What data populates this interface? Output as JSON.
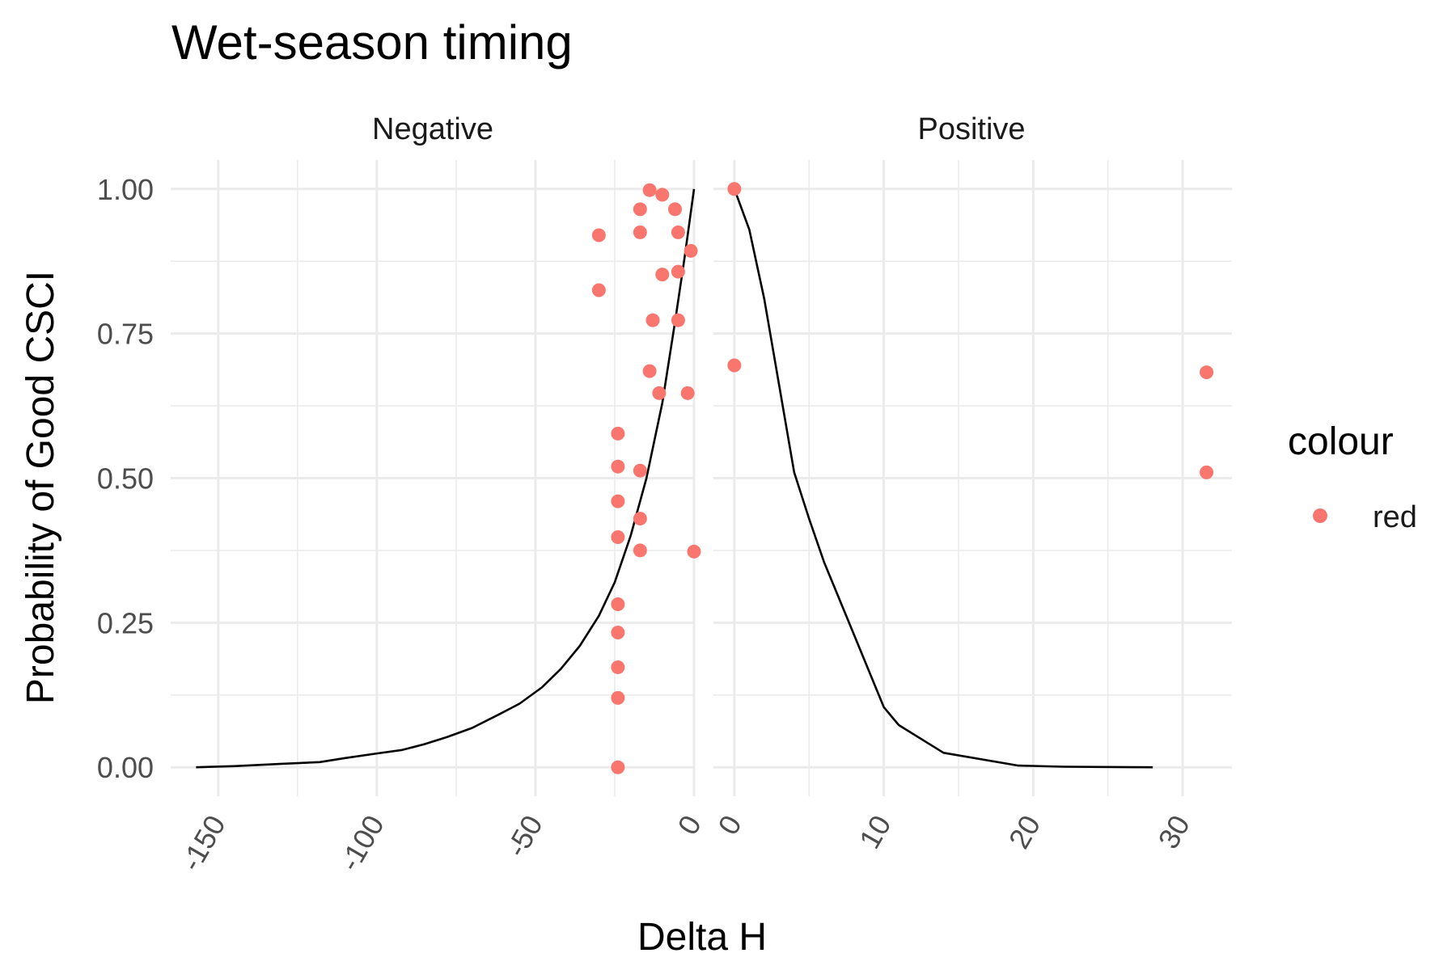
{
  "chart_data": {
    "type": "scatter",
    "title": "Wet-season timing",
    "xlabel": "Delta H",
    "ylabel": "Probability of Good CSCI",
    "legend": {
      "title": "colour",
      "position": "right",
      "entries": [
        {
          "label": "red",
          "color": "#F8766D"
        }
      ]
    },
    "y_ticks": [
      "0.00",
      "0.25",
      "0.50",
      "0.75",
      "1.00"
    ],
    "ylim": [
      -0.05,
      1.05
    ],
    "point_color": "#F8766D",
    "line_color": "#000000",
    "grid": true,
    "panels": [
      {
        "strip": "Negative",
        "xlim": [
          -165,
          0
        ],
        "x_ticks": [
          -150,
          -100,
          -50,
          0
        ],
        "points": [
          {
            "x": -30,
            "y": 0.92
          },
          {
            "x": -30,
            "y": 0.825
          },
          {
            "x": -17,
            "y": 0.965
          },
          {
            "x": -17,
            "y": 0.925
          },
          {
            "x": -14,
            "y": 0.998
          },
          {
            "x": -10,
            "y": 0.99
          },
          {
            "x": -6,
            "y": 0.965
          },
          {
            "x": -5,
            "y": 0.925
          },
          {
            "x": -1,
            "y": 0.893
          },
          {
            "x": -5,
            "y": 0.857
          },
          {
            "x": -10,
            "y": 0.852
          },
          {
            "x": -13,
            "y": 0.773
          },
          {
            "x": -5,
            "y": 0.773
          },
          {
            "x": -14,
            "y": 0.685
          },
          {
            "x": -11,
            "y": 0.647
          },
          {
            "x": -2,
            "y": 0.647
          },
          {
            "x": -24,
            "y": 0.577
          },
          {
            "x": -24,
            "y": 0.52
          },
          {
            "x": -17,
            "y": 0.513
          },
          {
            "x": -24,
            "y": 0.46
          },
          {
            "x": -17,
            "y": 0.43
          },
          {
            "x": -24,
            "y": 0.398
          },
          {
            "x": -17,
            "y": 0.375
          },
          {
            "x": 0,
            "y": 0.373
          },
          {
            "x": -24,
            "y": 0.282
          },
          {
            "x": -24,
            "y": 0.233
          },
          {
            "x": -24,
            "y": 0.173
          },
          {
            "x": -24,
            "y": 0.12
          },
          {
            "x": -24,
            "y": 0.0
          }
        ],
        "curve": [
          {
            "x": -157,
            "y": 0.0
          },
          {
            "x": -145,
            "y": 0.002
          },
          {
            "x": -130,
            "y": 0.006
          },
          {
            "x": -118,
            "y": 0.009
          },
          {
            "x": -110,
            "y": 0.016
          },
          {
            "x": -100,
            "y": 0.024
          },
          {
            "x": -92,
            "y": 0.03
          },
          {
            "x": -85,
            "y": 0.04
          },
          {
            "x": -78,
            "y": 0.052
          },
          {
            "x": -70,
            "y": 0.068
          },
          {
            "x": -62,
            "y": 0.09
          },
          {
            "x": -55,
            "y": 0.11
          },
          {
            "x": -48,
            "y": 0.138
          },
          {
            "x": -42,
            "y": 0.17
          },
          {
            "x": -36,
            "y": 0.21
          },
          {
            "x": -30,
            "y": 0.262
          },
          {
            "x": -25,
            "y": 0.32
          },
          {
            "x": -20,
            "y": 0.4
          },
          {
            "x": -15,
            "y": 0.5
          },
          {
            "x": -10,
            "y": 0.63
          },
          {
            "x": -6,
            "y": 0.77
          },
          {
            "x": -3,
            "y": 0.88
          },
          {
            "x": 0,
            "y": 1.0
          }
        ]
      },
      {
        "strip": "Positive",
        "xlim": [
          -1.4,
          33.3
        ],
        "x_ticks": [
          0,
          10,
          20,
          30
        ],
        "points": [
          {
            "x": 0,
            "y": 1.0
          },
          {
            "x": 0,
            "y": 0.695
          },
          {
            "x": 31.6,
            "y": 0.683
          },
          {
            "x": 31.6,
            "y": 0.51
          }
        ],
        "curve": [
          {
            "x": 0,
            "y": 1.0
          },
          {
            "x": 1,
            "y": 0.93
          },
          {
            "x": 2,
            "y": 0.81
          },
          {
            "x": 3,
            "y": 0.66
          },
          {
            "x": 4,
            "y": 0.51
          },
          {
            "x": 5,
            "y": 0.43
          },
          {
            "x": 6,
            "y": 0.355
          },
          {
            "x": 8,
            "y": 0.23
          },
          {
            "x": 10,
            "y": 0.104
          },
          {
            "x": 11,
            "y": 0.073
          },
          {
            "x": 14,
            "y": 0.025
          },
          {
            "x": 19,
            "y": 0.003
          },
          {
            "x": 22,
            "y": 0.001
          },
          {
            "x": 28,
            "y": 0.0
          }
        ]
      }
    ]
  }
}
